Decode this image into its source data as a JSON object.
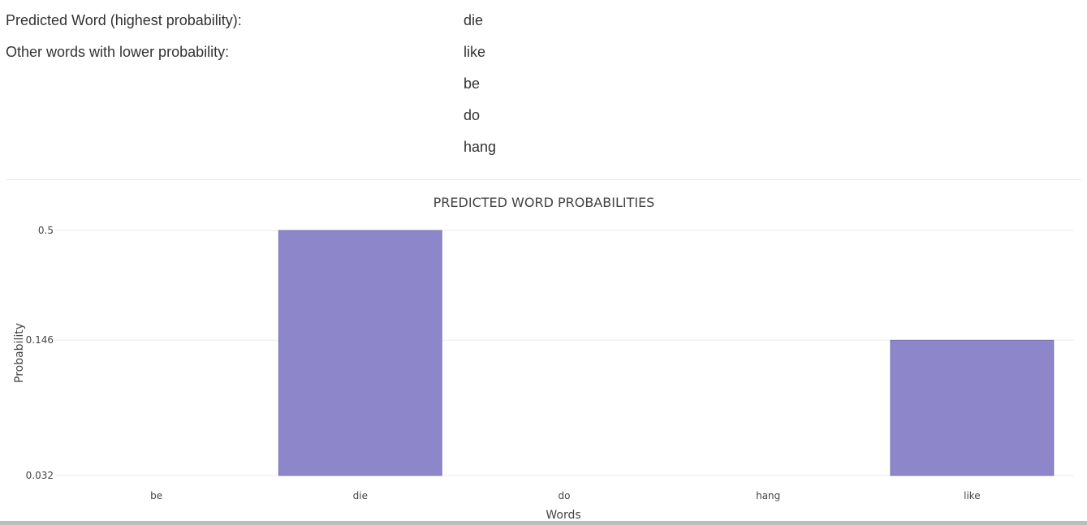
{
  "prediction": {
    "predicted_label": "Predicted Word (highest probability):",
    "predicted_word": "die",
    "others_label": "Other words with lower probability:",
    "other_words": [
      "like",
      "be",
      "do",
      "hang"
    ]
  },
  "chart_data": {
    "type": "bar",
    "title": "PREDICTED WORD PROBABILITIES",
    "xlabel": "Words",
    "ylabel": "Probability",
    "categories": [
      "be",
      "die",
      "do",
      "hang",
      "like"
    ],
    "values": [
      0.032,
      0.5,
      0.032,
      0.032,
      0.146
    ],
    "y_scale": "log",
    "ylim": [
      0.032,
      0.5
    ],
    "yticks": [
      0.032,
      0.146,
      0.5
    ],
    "ytick_labels": [
      "0.032",
      "0.146",
      "0.5"
    ],
    "grid": true,
    "bar_color": "#8e86ca"
  }
}
